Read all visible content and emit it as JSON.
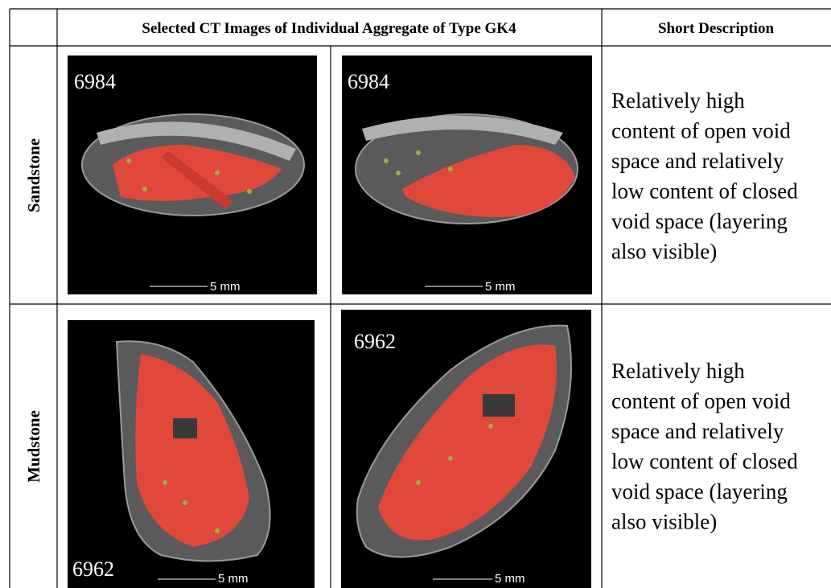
{
  "header": {
    "images": "Selected CT Images of Individual Aggregate of Type GK4",
    "description": "Short Description"
  },
  "rows": [
    {
      "label": "Sandstone",
      "images": [
        {
          "id": "6984",
          "scale": "5 mm"
        },
        {
          "id": "6984",
          "scale": "5 mm"
        }
      ],
      "description": [
        "Relatively high",
        "content of open void",
        "space and relatively",
        "low content of closed",
        "void space (layering",
        "also visible)"
      ]
    },
    {
      "label": "Mudstone",
      "images": [
        {
          "id": "6962",
          "scale": "5 mm"
        },
        {
          "id": "6962",
          "scale": "5 mm"
        }
      ],
      "description": [
        "Relatively high",
        "content of open void",
        "space and relatively",
        "low content of closed",
        "void space (layering",
        "also visible)"
      ]
    }
  ]
}
